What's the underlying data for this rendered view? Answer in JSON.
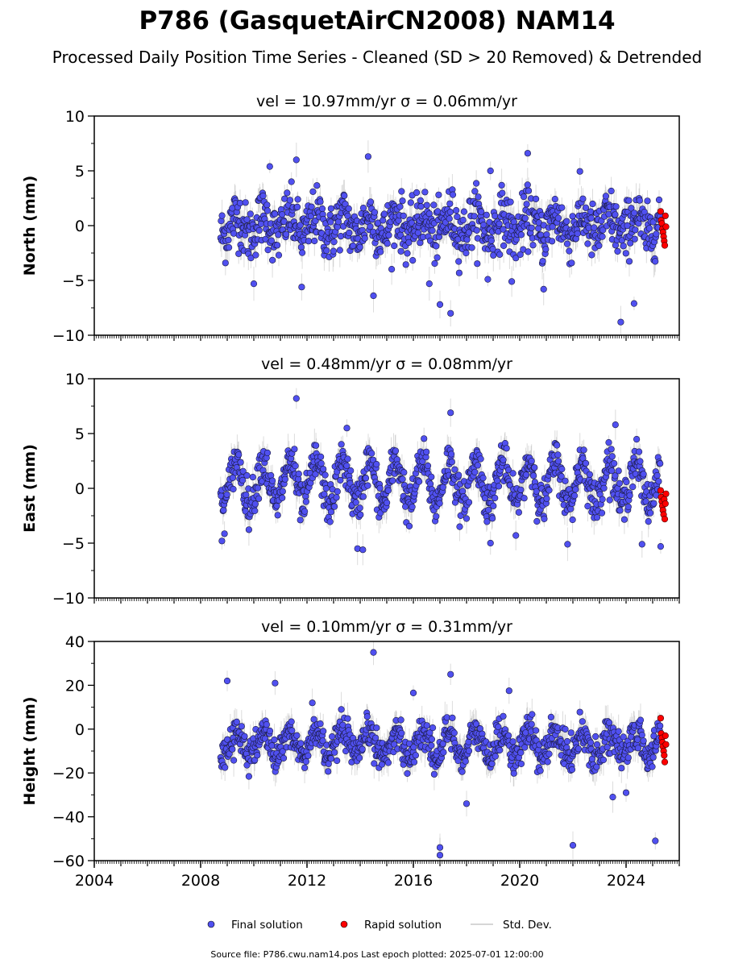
{
  "title": "P786 (GasquetAirCN2008) NAM14",
  "subtitle": "Processed Daily Position Time Series - Cleaned (SD > 20 Removed) & Detrended",
  "footer": "Source file: P786.cwu.nam14.pos  Last epoch plotted: 2025-07-01 12:00:00",
  "legend": {
    "placement": "bottom-center",
    "items": [
      {
        "label": "Final solution",
        "color": "#5050f0",
        "marker": "point"
      },
      {
        "label": "Rapid solution",
        "color": "#ff0000",
        "marker": "point"
      },
      {
        "label": "Std. Dev.",
        "color": "#c8c8c8",
        "marker": "line"
      }
    ]
  },
  "colors": {
    "final": "#5050f0",
    "rapid": "#ff0000",
    "stddev": "#808080",
    "axis": "#000000"
  },
  "chart_data": [
    {
      "type": "scatter",
      "title": "vel = 10.97mm/yr   σ = 0.06mm/yr",
      "ylabel": "North (mm)",
      "xlim": [
        2004.0,
        2026.0
      ],
      "ylim": [
        -10,
        10
      ],
      "yticks": [
        -10,
        -5,
        0,
        5,
        10
      ],
      "ytick_labels": [
        "−10",
        "−5",
        "0",
        "5",
        "10"
      ],
      "x_start": 2008.75,
      "x_end": 2025.28,
      "rapid_start": 2025.3,
      "rapid_end": 2025.5,
      "grid": false,
      "series": [
        {
          "name": "Final solution",
          "baseline": 0,
          "amplitude": 0.9,
          "noise": 1.5,
          "outliers": [
            [
              2014.3,
              6.3
            ],
            [
              2014.5,
              -6.4
            ],
            [
              2011.6,
              6.0
            ],
            [
              2010.6,
              5.4
            ],
            [
              2020.3,
              6.6
            ],
            [
              2017.0,
              -7.2
            ],
            [
              2017.4,
              -8.0
            ],
            [
              2023.8,
              -8.8
            ],
            [
              2024.3,
              -7.1
            ],
            [
              2011.8,
              -5.6
            ],
            [
              2010.0,
              -5.3
            ],
            [
              2019.7,
              -5.1
            ],
            [
              2016.6,
              -5.3
            ],
            [
              2020.9,
              -5.8
            ],
            [
              2018.8,
              -4.9
            ],
            [
              2018.9,
              5.0
            ]
          ]
        },
        {
          "name": "Rapid solution",
          "values": [
            1.3,
            0.5,
            0.2,
            -0.3,
            -0.6,
            -1.0,
            -1.4,
            -1.8,
            0.9,
            -0.1
          ]
        }
      ]
    },
    {
      "type": "scatter",
      "title": "vel = 0.48mm/yr   σ = 0.08mm/yr",
      "ylabel": "East (mm)",
      "xlim": [
        2004.0,
        2026.0
      ],
      "ylim": [
        -10,
        10
      ],
      "yticks": [
        -10,
        -5,
        0,
        5,
        10
      ],
      "ytick_labels": [
        "−10",
        "−5",
        "0",
        "5",
        "10"
      ],
      "x_start": 2008.75,
      "x_end": 2025.28,
      "rapid_start": 2025.3,
      "rapid_end": 2025.5,
      "grid": false,
      "series": [
        {
          "name": "Final solution",
          "baseline": 0.5,
          "amplitude": 2.0,
          "noise": 1.1,
          "outliers": [
            [
              2008.8,
              -4.8
            ],
            [
              2011.6,
              8.2
            ],
            [
              2017.4,
              6.9
            ],
            [
              2013.9,
              -5.5
            ],
            [
              2014.1,
              -5.6
            ],
            [
              2013.5,
              5.5
            ],
            [
              2023.6,
              5.8
            ],
            [
              2024.6,
              -5.1
            ],
            [
              2025.3,
              -5.3
            ],
            [
              2018.9,
              -5.0
            ],
            [
              2021.8,
              -5.1
            ]
          ]
        },
        {
          "name": "Rapid solution",
          "values": [
            -0.2,
            -0.8,
            -1.2,
            -1.6,
            -2.0,
            -2.4,
            -1.0,
            -2.8,
            -1.4,
            -0.5
          ]
        }
      ]
    },
    {
      "type": "scatter",
      "title": "vel = 0.10mm/yr   σ = 0.31mm/yr",
      "ylabel": "Height (mm)",
      "xlim": [
        2004.0,
        2026.0
      ],
      "ylim": [
        -60,
        40
      ],
      "yticks": [
        -60,
        -40,
        -20,
        0,
        20,
        40
      ],
      "ytick_labels": [
        "−60",
        "−40",
        "−20",
        "0",
        "20",
        "40"
      ],
      "xticks": [
        2004,
        2008,
        2012,
        2016,
        2020,
        2024
      ],
      "xtick_labels": [
        "2004",
        "2008",
        "2012",
        "2016",
        "2020",
        "2024"
      ],
      "x_start": 2008.75,
      "x_end": 2025.28,
      "rapid_start": 2025.3,
      "rapid_end": 2025.5,
      "grid": false,
      "series": [
        {
          "name": "Final solution",
          "baseline": -7,
          "amplitude": 6.0,
          "noise": 4.5,
          "outliers": [
            [
              2014.5,
              35.0
            ],
            [
              2017.4,
              25.0
            ],
            [
              2009.0,
              22.0
            ],
            [
              2010.8,
              21.0
            ],
            [
              2016.0,
              16.5
            ],
            [
              2017.0,
              -54.0
            ],
            [
              2017.0,
              -57.5
            ],
            [
              2022.0,
              -53.0
            ],
            [
              2025.1,
              -51.0
            ],
            [
              2018.0,
              -34.0
            ],
            [
              2023.5,
              -31.0
            ],
            [
              2024.0,
              -29.0
            ],
            [
              2012.2,
              12.0
            ],
            [
              2019.6,
              17.5
            ]
          ]
        },
        {
          "name": "Rapid solution",
          "values": [
            5.0,
            -2.0,
            -4.0,
            -6.0,
            -8.0,
            -10.0,
            -12.0,
            -15.0,
            -3.0,
            -7.0
          ]
        }
      ]
    }
  ]
}
